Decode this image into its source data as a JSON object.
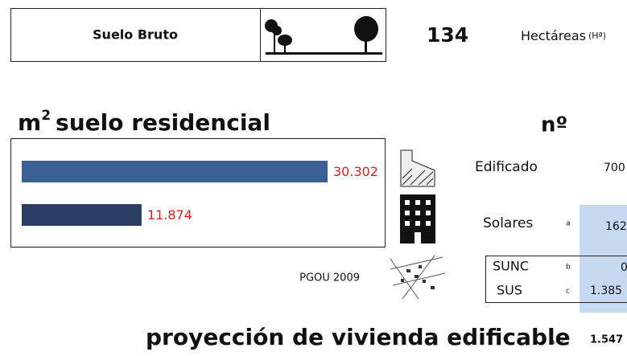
{
  "header": {
    "label": "Suelo Bruto",
    "value": "134",
    "unit": "Hectáreas",
    "unit_abbr": "(Hª)"
  },
  "residential": {
    "title_unit": "m",
    "title_sup": "2",
    "title_rest": "suelo residencial",
    "values": [
      30302,
      11874
    ],
    "value_labels": [
      "30.302",
      "11.874"
    ],
    "colors": [
      "#3b6096",
      "#283f63"
    ],
    "label_color": "#e02020"
  },
  "source": "PGOU 2009",
  "count_header": "nº",
  "rows": [
    {
      "label": "Edificado",
      "value": "700"
    },
    {
      "label": "Solares",
      "key": "a",
      "value": "162"
    },
    {
      "label": "SUNC",
      "key": "b",
      "value": "0"
    },
    {
      "label": "SUS",
      "key": "c",
      "value": "1.385"
    }
  ],
  "footer": {
    "label": "proyección de vivienda edificable",
    "key": "a+c",
    "value": "1.547"
  }
}
